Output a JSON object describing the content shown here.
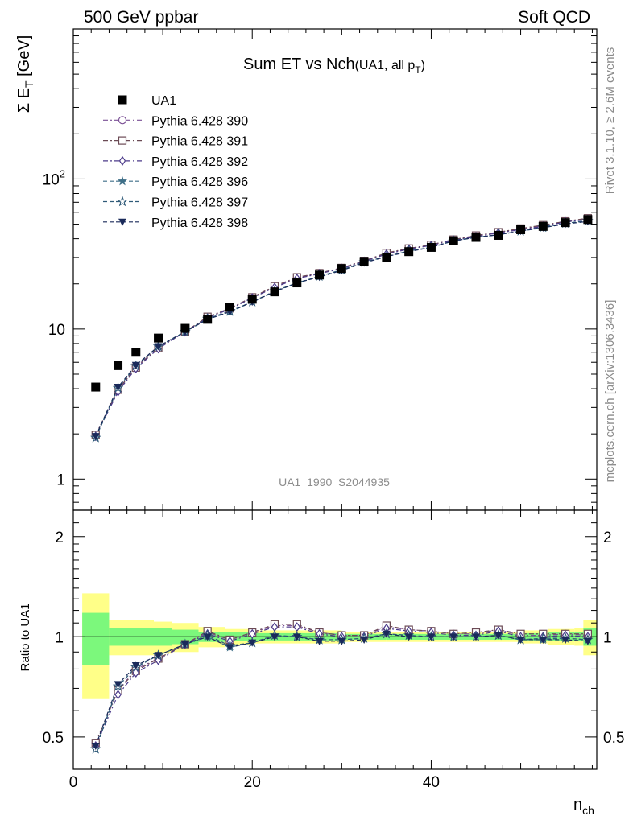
{
  "header": {
    "left": "500 GeV ppbar",
    "right": "Soft QCD"
  },
  "side_text": {
    "rivet": "Rivet 3.1.10, ≥ 2.6M events",
    "mcplots": "mcplots.cern.ch [arXiv:1306.3436]"
  },
  "chart_data": {
    "type": "scatter",
    "title_main": "Sum ET vs Nch",
    "title_sub": "(UA1, all p",
    "title_sub_subscript": "T",
    "title_sub_close": ")",
    "watermark": "UA1_1990_S2044935",
    "ylabel_main": "Σ E",
    "ylabel_sub": "T",
    "ylabel_unit": " [GeV]",
    "ratio_ylabel": "Ratio to UA1",
    "xlabel_main": "n",
    "xlabel_sub": "ch",
    "xlim": [
      0,
      58.5
    ],
    "ylim": [
      0.62,
      1000
    ],
    "yscale": "log",
    "ratio_ylim": [
      0.4,
      2.4
    ],
    "ratio_yscale": "log",
    "x_ticks": [
      "0",
      "20",
      "40"
    ],
    "y_ticks": [
      "1",
      "10",
      "10^2"
    ],
    "ratio_y_ticks": [
      "0.5",
      "1",
      "2"
    ],
    "colors": {
      "data": "#000000",
      "band_inner": "#7cf87c",
      "band_outer": "#ffff88"
    },
    "data": {
      "name": "UA1",
      "x": [
        2.5,
        5,
        7,
        9.5,
        12.5,
        15,
        17.5,
        20,
        22.5,
        25,
        27.5,
        30,
        32.5,
        35,
        37.5,
        40,
        42.5,
        45,
        47.5,
        50,
        52.5,
        55,
        57.5
      ],
      "y": [
        4.1,
        5.7,
        7.0,
        8.7,
        10.1,
        11.6,
        14.0,
        15.8,
        17.7,
        20.3,
        22.9,
        25.3,
        28.2,
        29.8,
        32.8,
        35.0,
        38.7,
        40.8,
        42.1,
        45.9,
        48.3,
        51.2,
        53.7
      ]
    },
    "band": {
      "edges": [
        1,
        4,
        9,
        11,
        14,
        17,
        20,
        30,
        35,
        50,
        53,
        56,
        57,
        58.5
      ],
      "inner": [
        0.18,
        0.06,
        0.06,
        0.05,
        0.035,
        0.03,
        0.025,
        0.02,
        0.02,
        0.025,
        0.03,
        0.03,
        0.06
      ],
      "outer": [
        0.35,
        0.12,
        0.11,
        0.1,
        0.07,
        0.055,
        0.045,
        0.035,
        0.035,
        0.045,
        0.055,
        0.06,
        0.12
      ]
    },
    "series": [
      {
        "name": "Pythia 6.428 390",
        "color": "#7b5096",
        "marker": "circle-open",
        "dash": "6,3,2,3",
        "ratio": [
          0.48,
          0.69,
          0.8,
          0.86,
          0.95,
          1.03,
          0.98,
          1.03,
          1.08,
          1.08,
          1.03,
          1.01,
          1.01,
          1.07,
          1.05,
          1.04,
          1.02,
          1.02,
          1.05,
          1.01,
          1.01,
          1.02,
          1.01
        ]
      },
      {
        "name": "Pythia 6.428 391",
        "color": "#6b4a55",
        "marker": "square-open",
        "dash": "6,3,2,3",
        "ratio": [
          0.48,
          0.69,
          0.79,
          0.86,
          0.95,
          1.04,
          0.98,
          1.03,
          1.09,
          1.09,
          1.03,
          1.01,
          1.01,
          1.08,
          1.05,
          1.04,
          1.02,
          1.03,
          1.05,
          1.02,
          1.02,
          1.02,
          1.02
        ]
      },
      {
        "name": "Pythia 6.428 392",
        "color": "#4b3a8a",
        "marker": "diamond-open",
        "dash": "6,3,2,3",
        "ratio": [
          0.47,
          0.67,
          0.78,
          0.85,
          0.95,
          1.02,
          0.97,
          1.02,
          1.07,
          1.07,
          1.02,
          1.0,
          1.0,
          1.06,
          1.04,
          1.03,
          1.01,
          1.01,
          1.04,
          1.0,
          1.0,
          1.01,
          1.0
        ]
      },
      {
        "name": "Pythia 6.428 396",
        "color": "#3f6f88",
        "marker": "star-filled",
        "dash": "5,3",
        "ratio": [
          0.46,
          0.71,
          0.81,
          0.88,
          0.95,
          1.0,
          0.93,
          0.96,
          1.01,
          1.0,
          0.98,
          0.98,
          0.99,
          1.02,
          1.01,
          1.0,
          1.0,
          1.0,
          1.01,
          0.98,
          0.98,
          0.99,
          0.98
        ]
      },
      {
        "name": "Pythia 6.428 397",
        "color": "#2f5a78",
        "marker": "star-open",
        "dash": "5,3",
        "ratio": [
          0.46,
          0.71,
          0.81,
          0.88,
          0.95,
          1.01,
          0.94,
          0.96,
          1.01,
          1.0,
          0.98,
          0.98,
          0.99,
          1.02,
          1.01,
          1.0,
          1.0,
          1.0,
          1.01,
          0.98,
          0.99,
          0.99,
          0.98
        ]
      },
      {
        "name": "Pythia 6.428 398",
        "color": "#1a2a5a",
        "marker": "triangle-down-filled",
        "dash": "5,3",
        "ratio": [
          0.47,
          0.72,
          0.82,
          0.88,
          0.95,
          1.0,
          0.93,
          0.96,
          1.0,
          1.0,
          0.97,
          0.97,
          0.98,
          1.02,
          1.0,
          1.0,
          1.0,
          1.0,
          1.01,
          0.98,
          0.98,
          0.98,
          0.97
        ]
      }
    ]
  }
}
